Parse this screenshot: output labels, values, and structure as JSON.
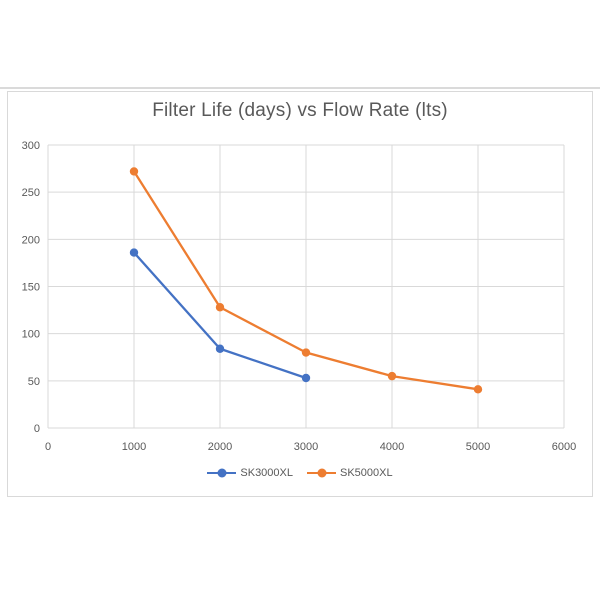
{
  "page": {
    "background": "#ffffff",
    "divider_color": "#dadada"
  },
  "chart": {
    "panel_border_color": "#d9d9d9",
    "grid_color": "#d9d9d9",
    "title_color": "#595959",
    "axis_label_color": "#595959"
  },
  "chart_data": {
    "type": "line",
    "title": "Filter Life (days) vs Flow Rate (lts)",
    "xlabel": "",
    "ylabel": "",
    "xlim": [
      0,
      6000
    ],
    "ylim": [
      0,
      300
    ],
    "x_ticks": [
      0,
      1000,
      2000,
      3000,
      4000,
      5000,
      6000
    ],
    "y_ticks": [
      0,
      50,
      100,
      150,
      200,
      250,
      300
    ],
    "grid": true,
    "legend_position": "bottom",
    "series": [
      {
        "name": "SK3000XL",
        "color": "#4472C4",
        "x": [
          1000,
          2000,
          3000
        ],
        "values": [
          186,
          84,
          53
        ]
      },
      {
        "name": "SK5000XL",
        "color": "#ED7D31",
        "x": [
          1000,
          2000,
          3000,
          4000,
          5000
        ],
        "values": [
          272,
          128,
          80,
          55,
          41
        ]
      }
    ]
  }
}
